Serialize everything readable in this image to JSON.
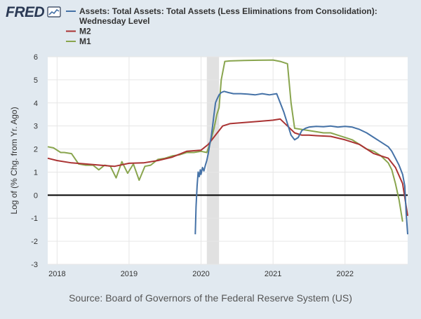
{
  "header": {
    "logo_text": "FRED",
    "logo_color": "#2b3a55"
  },
  "footer": {
    "source": "Source: Board of Governors of the Federal Reserve System (US)"
  },
  "chart_data": {
    "type": "line",
    "title": "",
    "xlabel": "",
    "ylabel": "Log of (% Chg. from Yr. Ago)",
    "xlim": [
      2017.87,
      2022.87
    ],
    "ylim": [
      -3,
      6
    ],
    "yticks": [
      -3,
      -2,
      -1,
      0,
      1,
      2,
      3,
      4,
      5,
      6
    ],
    "xticks": [
      {
        "value": 2018,
        "label": "2018"
      },
      {
        "value": 2019,
        "label": "2019"
      },
      {
        "value": 2020,
        "label": "2020"
      },
      {
        "value": 2021,
        "label": "2021"
      },
      {
        "value": 2022,
        "label": "2022"
      }
    ],
    "grid": true,
    "zero_line": true,
    "legend_position": "top",
    "recession": [
      {
        "start": 2020.08,
        "end": 2020.25
      }
    ],
    "series": [
      {
        "name": "Assets: Total Assets: Total Assets (Less Eliminations from Consolidation): Wednesday Level",
        "legend_lines": [
          "Assets: Total Assets: Total Assets (Less Eliminations from Consolidation):",
          "Wednesday Level"
        ],
        "color": "#4572a7",
        "x": [
          2019.92,
          2019.93,
          2019.945,
          2019.96,
          2019.975,
          2019.99,
          2020.0,
          2020.02,
          2020.04,
          2020.06,
          2020.08,
          2020.1,
          2020.12,
          2020.14,
          2020.16,
          2020.18,
          2020.2,
          2020.22,
          2020.25,
          2020.28,
          2020.32,
          2020.38,
          2020.45,
          2020.55,
          2020.65,
          2020.75,
          2020.85,
          2020.95,
          2021.05,
          2021.15,
          2021.2,
          2021.25,
          2021.3,
          2021.35,
          2021.4,
          2021.45,
          2021.5,
          2021.6,
          2021.7,
          2021.8,
          2021.9,
          2022.0,
          2022.1,
          2022.2,
          2022.3,
          2022.4,
          2022.5,
          2022.6,
          2022.65,
          2022.7,
          2022.75,
          2022.8,
          2022.83,
          2022.85,
          2022.87
        ],
        "values": [
          -1.7,
          -0.5,
          0.4,
          1.0,
          0.8,
          1.1,
          0.9,
          1.2,
          1.05,
          1.3,
          1.5,
          1.8,
          2.2,
          2.5,
          3.0,
          3.5,
          4.0,
          4.15,
          4.35,
          4.45,
          4.5,
          4.45,
          4.4,
          4.4,
          4.38,
          4.35,
          4.4,
          4.35,
          4.4,
          3.6,
          3.1,
          2.6,
          2.4,
          2.5,
          2.8,
          2.9,
          2.95,
          2.98,
          2.97,
          3.0,
          2.95,
          2.98,
          2.95,
          2.85,
          2.7,
          2.5,
          2.3,
          2.1,
          1.9,
          1.6,
          1.3,
          0.9,
          0.4,
          -0.8,
          -1.7
        ]
      },
      {
        "name": "M2",
        "legend_lines": [
          "M2"
        ],
        "color": "#aa3333",
        "x": [
          2017.87,
          2018.0,
          2018.2,
          2018.4,
          2018.6,
          2018.8,
          2019.0,
          2019.2,
          2019.4,
          2019.6,
          2019.8,
          2020.0,
          2020.1,
          2020.2,
          2020.3,
          2020.4,
          2020.6,
          2020.8,
          2021.0,
          2021.1,
          2021.2,
          2021.3,
          2021.4,
          2021.5,
          2021.6,
          2021.8,
          2022.0,
          2022.2,
          2022.4,
          2022.6,
          2022.7,
          2022.8,
          2022.87
        ],
        "values": [
          1.6,
          1.5,
          1.4,
          1.35,
          1.3,
          1.25,
          1.38,
          1.4,
          1.5,
          1.65,
          1.9,
          1.95,
          2.2,
          2.6,
          3.0,
          3.1,
          3.15,
          3.2,
          3.25,
          3.3,
          3.0,
          2.7,
          2.6,
          2.6,
          2.58,
          2.55,
          2.4,
          2.2,
          1.8,
          1.6,
          1.2,
          0.5,
          -0.9
        ]
      },
      {
        "name": "M1",
        "legend_lines": [
          "M1"
        ],
        "color": "#89a54e",
        "x": [
          2017.87,
          2017.95,
          2018.05,
          2018.1,
          2018.2,
          2018.3,
          2018.4,
          2018.5,
          2018.58,
          2018.66,
          2018.74,
          2018.82,
          2018.9,
          2018.98,
          2019.06,
          2019.14,
          2019.22,
          2019.3,
          2019.4,
          2019.5,
          2019.6,
          2019.7,
          2019.8,
          2019.9,
          2020.0,
          2020.08,
          2020.13,
          2020.18,
          2020.22,
          2020.25,
          2020.28,
          2020.33,
          2020.4,
          2020.6,
          2020.8,
          2021.0,
          2021.1,
          2021.2,
          2021.25,
          2021.3,
          2021.4,
          2021.5,
          2021.6,
          2021.7,
          2021.8,
          2021.9,
          2022.0,
          2022.1,
          2022.2,
          2022.3,
          2022.4,
          2022.5,
          2022.6,
          2022.65,
          2022.7,
          2022.75,
          2022.8
        ],
        "values": [
          2.1,
          2.05,
          1.85,
          1.85,
          1.8,
          1.35,
          1.3,
          1.3,
          1.1,
          1.3,
          1.25,
          0.75,
          1.45,
          0.95,
          1.35,
          0.65,
          1.25,
          1.3,
          1.55,
          1.6,
          1.7,
          1.75,
          1.85,
          1.85,
          1.9,
          1.85,
          2.3,
          2.9,
          3.5,
          3.8,
          5.0,
          5.8,
          5.82,
          5.84,
          5.85,
          5.86,
          5.8,
          5.7,
          4.0,
          2.9,
          2.85,
          2.8,
          2.75,
          2.7,
          2.7,
          2.6,
          2.5,
          2.4,
          2.2,
          2.0,
          1.9,
          1.7,
          1.4,
          1.1,
          0.5,
          -0.2,
          -1.15
        ]
      }
    ]
  }
}
